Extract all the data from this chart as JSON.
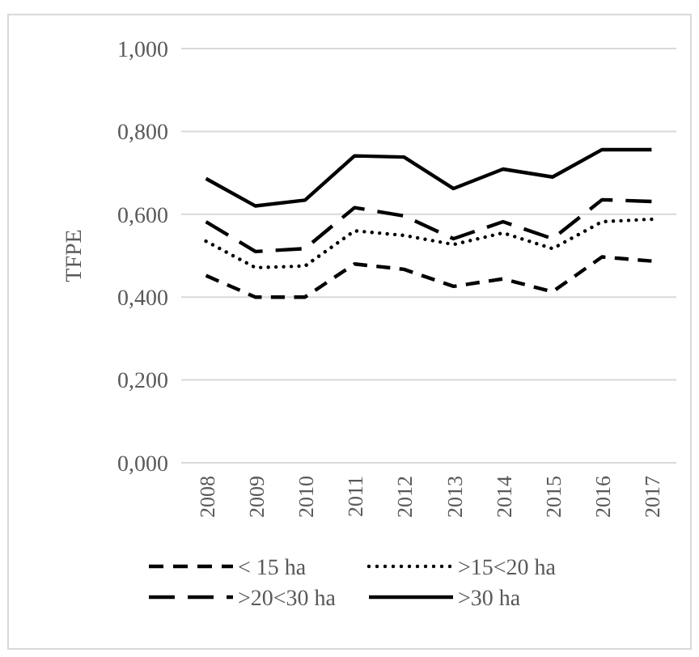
{
  "chart_data": {
    "type": "line",
    "ylabel": "TFPE",
    "categories": [
      "2008",
      "2009",
      "2010",
      "2011",
      "2012",
      "2013",
      "2014",
      "2015",
      "2016",
      "2017"
    ],
    "series": [
      {
        "name": "< 15 ha",
        "color": "#000000",
        "line_style": "dashed",
        "values": [
          0.452,
          0.4,
          0.4,
          0.48,
          0.467,
          0.426,
          0.444,
          0.413,
          0.497,
          0.487
        ]
      },
      {
        "name": ">15<20 ha",
        "color": "#000000",
        "line_style": "dotted",
        "values": [
          0.535,
          0.471,
          0.475,
          0.56,
          0.549,
          0.527,
          0.555,
          0.517,
          0.582,
          0.588
        ]
      },
      {
        "name": ">20<30 ha",
        "color": "#000000",
        "line_style": "dashed",
        "values": [
          0.582,
          0.51,
          0.517,
          0.616,
          0.596,
          0.541,
          0.582,
          0.541,
          0.635,
          0.631
        ]
      },
      {
        "name": ">30 ha",
        "color": "#000000",
        "line_style": "solid",
        "values": [
          0.686,
          0.62,
          0.634,
          0.741,
          0.738,
          0.662,
          0.709,
          0.69,
          0.756,
          0.756
        ]
      }
    ],
    "ylim": [
      0,
      1
    ],
    "yticks": [
      {
        "value": 0,
        "label": "0,000"
      },
      {
        "value": 0.2,
        "label": "0,200"
      },
      {
        "value": 0.4,
        "label": "0,400"
      },
      {
        "value": 0.6,
        "label": "0,600"
      },
      {
        "value": 0.8,
        "label": "0,800"
      },
      {
        "value": 1,
        "label": "1,000"
      }
    ],
    "grid": "y",
    "legend": "bottom"
  }
}
